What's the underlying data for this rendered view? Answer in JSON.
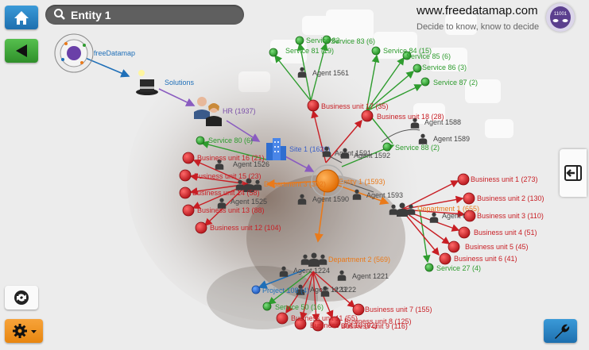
{
  "search": {
    "value": "Entity 1"
  },
  "brand": {
    "url": "www.freedatamap.com",
    "tagline": "Decide to know, know to decide",
    "logo_text": "11001"
  },
  "colors": {
    "service": "#2e9c2e",
    "business_unit": "#d7262c",
    "department": "#ea7a1a",
    "entity": "#f07a10",
    "site": "#3a5fc8",
    "hr": "#7a4fa8",
    "link_blue": "#1f6fb8",
    "agent": "#555555"
  },
  "icons": {
    "home": "home-icon",
    "back": "back-arrow-icon",
    "refresh": "refresh-icon",
    "settings": "gear-icon",
    "tools": "wrench-icon",
    "panel": "panel-toggle-icon",
    "search": "search-icon"
  },
  "graph": {
    "freedatamap": "freeDatamap",
    "solutions": "Solutions",
    "hr": "HR (1937)",
    "site": "Site 1 (1620)",
    "entity": "Entity 1 (1593)",
    "department_3": "Department 3 (302)",
    "department_1": "Department 1 (655)",
    "department_2": "Department 2 (569)",
    "bu17": "Business unit 17 (35)",
    "bu18": "Business unit 18 (28)",
    "bu16": "Business unit 16 (21)",
    "bu15": "Business unit 15 (23)",
    "bu14": "Business unit 14 (58)",
    "bu13": "Business unit 13 (88)",
    "bu12": "Business unit 12 (104)",
    "bu1": "Business unit 1 (273)",
    "bu2": "Business unit 2 (130)",
    "bu3": "Business unit 3 (110)",
    "bu4": "Business unit 4 (51)",
    "bu5": "Business unit 5 (45)",
    "bu6": "Business unit 6 (41)",
    "bu7": "Business unit 7 (155)",
    "bu8": "Business unit 8 (125)",
    "bu9": "Business unit 9 (116)",
    "bu10": "Business unit 10 (92)",
    "bu11": "Business unit 11 (55)",
    "s83": "Service 83 (6)",
    "s82": "Service 82",
    "s81": "Service 81 (19)",
    "s84": "Service 84 (15)",
    "s85": "Service 85 (6)",
    "s86": "Service 86 (3)",
    "s87": "Service 87 (2)",
    "s88": "Service 88 (2)",
    "s80": "Service 80 (6)",
    "s27": "Service 27 (4)",
    "s50": "Service 50 (16)",
    "project108": "Project 108 (4)",
    "a1561": "Agent 1561",
    "a1588": "Agent 1588",
    "a1589": "Agent 1589",
    "a1591": "Agent 1591",
    "a1592": "Agent 1592",
    "a1526": "Agent 1526",
    "a1525": "Agent 1525",
    "a1590": "Agent 1590",
    "a1593": "Agent 1593",
    "a655": "Agent 655",
    "a1224": "Agent 1224",
    "a1221": "Agent 1221",
    "a1223": "Agent 1223",
    "a1222": "nt 1222"
  }
}
